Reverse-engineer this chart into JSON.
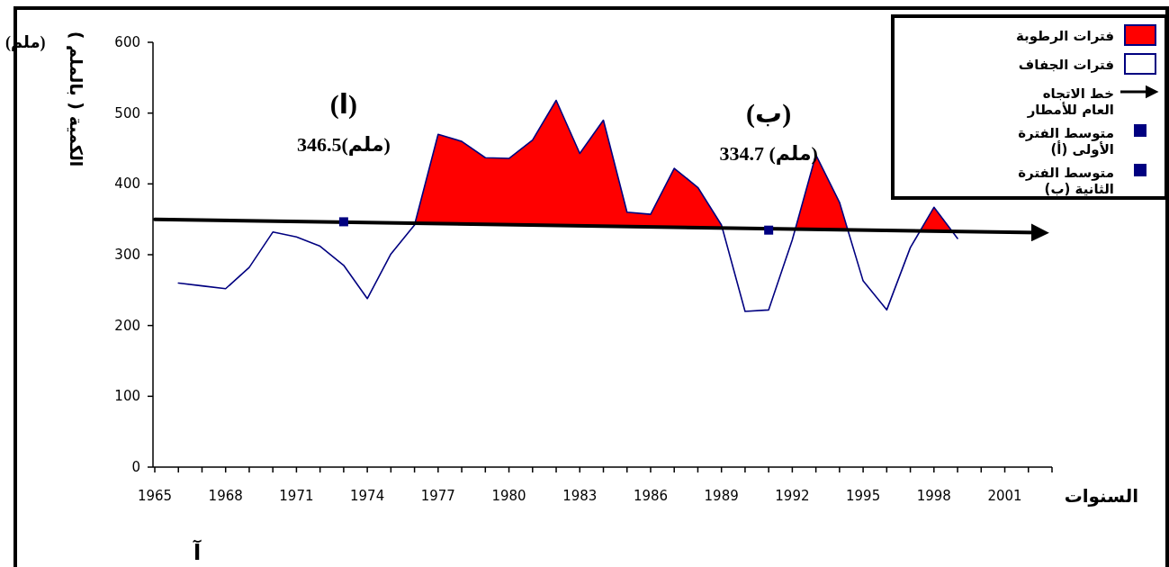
{
  "chart_data": {
    "type": "line",
    "ylabel": "الكمية ( بالملم )",
    "xlabel": "السنوات",
    "xlim": [
      1965,
      2003
    ],
    "xticks": [
      1965,
      {
        "value": 1966,
        "label": null
      },
      {
        "value": 1967,
        "label": null
      },
      1968,
      {
        "value": 1969,
        "label": null
      },
      {
        "value": 1970,
        "label": null
      },
      1971,
      {
        "value": 1972,
        "label": null
      },
      {
        "value": 1973,
        "label": null
      },
      1974,
      {
        "value": 1975,
        "label": null
      },
      {
        "value": 1976,
        "label": null
      },
      1977,
      {
        "value": 1978,
        "label": null
      },
      {
        "value": 1979,
        "label": null
      },
      1980,
      {
        "value": 1981,
        "label": null
      },
      {
        "value": 1982,
        "label": null
      },
      1983,
      {
        "value": 1984,
        "label": null
      },
      {
        "value": 1985,
        "label": null
      },
      1986,
      {
        "value": 1987,
        "label": null
      },
      {
        "value": 1988,
        "label": null
      },
      1989,
      {
        "value": 1990,
        "label": null
      },
      {
        "value": 1991,
        "label": null
      },
      1992,
      {
        "value": 1993,
        "label": null
      },
      {
        "value": 1994,
        "label": null
      },
      1995,
      {
        "value": 1996,
        "label": null
      },
      {
        "value": 1997,
        "label": null
      },
      1998,
      {
        "value": 1999,
        "label": null
      },
      {
        "value": 2000,
        "label": null
      },
      2001,
      {
        "value": 2002,
        "label": null
      },
      {
        "value": 2003,
        "label": null
      }
    ],
    "ylim": [
      0,
      600
    ],
    "yticks": [
      0,
      100,
      200,
      300,
      400,
      500,
      600
    ],
    "legend": "top right",
    "grid": false,
    "series": [
      {
        "name": "فترات الرطوبة",
        "type": "area",
        "color": "#ff0000",
        "x": [
          1966,
          1967,
          1968,
          1969,
          1970,
          1971,
          1972,
          1973,
          1974,
          1975,
          1976,
          1977,
          1978,
          1979,
          1980,
          1981,
          1982,
          1983,
          1984,
          1985,
          1986,
          1987,
          1988,
          1989,
          1990,
          1991,
          1992,
          1993,
          1994,
          1995,
          1996,
          1997,
          1998,
          1999
        ],
        "values": [
          260,
          256,
          252,
          282,
          332,
          325,
          312,
          285,
          238,
          301,
          342,
          470,
          460,
          437,
          436,
          462,
          518,
          443,
          490,
          360,
          357,
          422,
          395,
          342,
          220,
          222,
          321,
          441,
          374,
          263,
          222,
          310,
          367,
          323
        ]
      },
      {
        "name": "فترات الجفاف",
        "color": "#000080",
        "x": [
          1966,
          1967,
          1968,
          1969,
          1970,
          1971,
          1972,
          1973,
          1974,
          1975,
          1976,
          1977,
          1978,
          1979,
          1980,
          1981,
          1982,
          1983,
          1984,
          1985,
          1986,
          1987,
          1988,
          1989,
          1990,
          1991,
          1992,
          1993,
          1994,
          1995,
          1996,
          1997,
          1998,
          1999
        ],
        "values": [
          260,
          256,
          252,
          282,
          332,
          325,
          312,
          285,
          238,
          301,
          342,
          470,
          460,
          437,
          436,
          462,
          518,
          443,
          490,
          360,
          357,
          422,
          395,
          342,
          220,
          222,
          321,
          441,
          374,
          263,
          222,
          310,
          367,
          323
        ]
      },
      {
        "name": "خط الاتجاه العام للأمطار",
        "color": "#000000",
        "x": [
          1965,
          2002.5
        ],
        "values": [
          350,
          331
        ]
      },
      {
        "name": "متوسط الفترة (أ) الأولى",
        "type": "scatter",
        "marker": "square",
        "color": "#000080",
        "x": [
          1973
        ],
        "values": [
          346.5
        ]
      },
      {
        "name": "متوسط الفترة (ب) الثانية",
        "type": "scatter",
        "marker": "square",
        "color": "#000080",
        "x": [
          1991
        ],
        "values": [
          334.7
        ]
      }
    ],
    "annotations": [
      {
        "text": "(ا)\n346.5(ملم)",
        "x": 1973,
        "y": 346.5
      },
      {
        "text": "(ب)\n334.7 (ملم)",
        "x": 1991,
        "y": 334.7
      },
      "(ملم)",
      "آ"
    ]
  }
}
